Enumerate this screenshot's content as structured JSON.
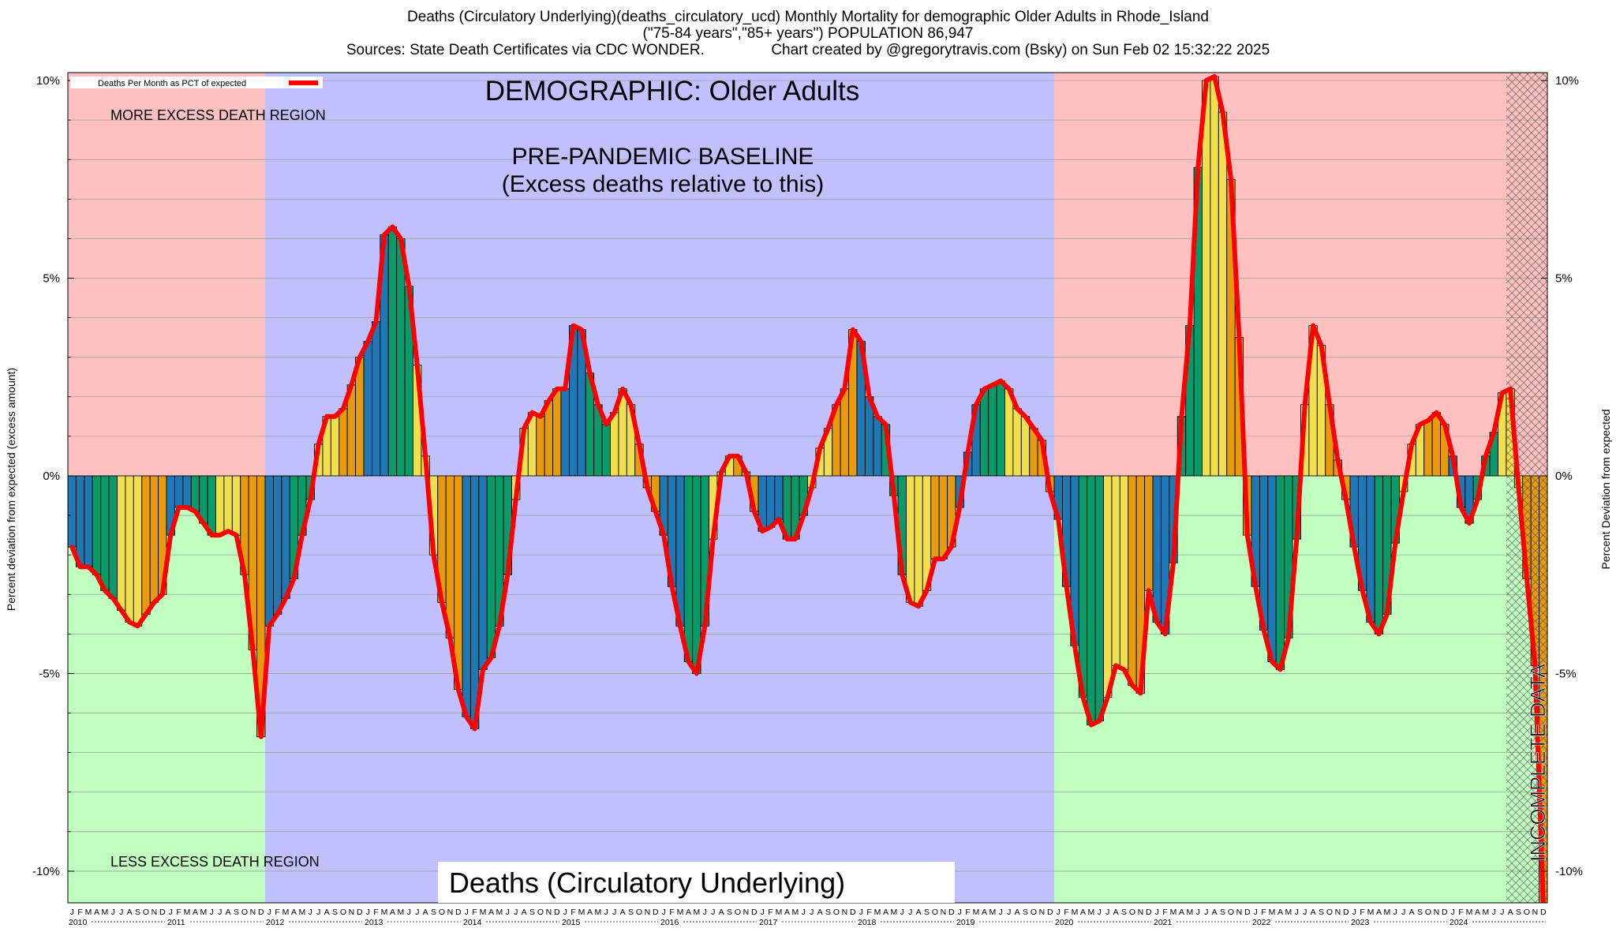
{
  "header": {
    "line1": "Deaths (Circulatory Underlying)(deaths_circulatory_ucd) Monthly Mortality for demographic Older Adults in Rhode_Island",
    "line2": "(\"75-84 years\",\"85+ years\") POPULATION 86,947",
    "line3": "Sources: State Death Certificates via CDC WONDER.                Chart created by @gregorytravis.com (Bsky) on Sun Feb 02 15:32:22 2025"
  },
  "labels": {
    "demographic": "DEMOGRAPHIC: Older Adults",
    "baseline_1": "PRE-PANDEMIC BASELINE",
    "baseline_2": "(Excess deaths relative to this)",
    "more_region": "MORE EXCESS DEATH REGION",
    "less_region": "LESS EXCESS DEATH REGION",
    "footer_title": "Deaths (Circulatory Underlying)",
    "incomplete": "INCOMPLETE DATA",
    "legend": "Deaths Per Month as PCT of expected"
  },
  "colors": {
    "excess_region": "#ffc0c0",
    "deficit_region": "#c0ffc0",
    "baseline_region": "#c0c0ff",
    "curve": "#ff0000",
    "bar_palette": [
      "#1f77b4",
      "#0a9a6a",
      "#f0e050",
      "#e69a10"
    ]
  },
  "chart_data": {
    "type": "bar",
    "title": "Deaths (Circulatory Underlying)(deaths_circulatory_ucd) Monthly Mortality for demographic Older Adults in Rhode_Island",
    "ylabel": "Percent deviation from expected (excess amount)",
    "ylabel_right": "Percent Deviation from expected",
    "ylim": [
      -10.8,
      10.2
    ],
    "yticks": [
      10,
      5,
      0,
      -5,
      -10
    ],
    "ytick_labels": [
      "10%",
      "5%",
      "0%",
      "-5%",
      "-10%"
    ],
    "month_letters": [
      "J",
      "F",
      "M",
      "A",
      "M",
      "J",
      "J",
      "A",
      "S",
      "O",
      "N",
      "D"
    ],
    "years": [
      "2010",
      "2011",
      "2012",
      "2013",
      "2014",
      "2015",
      "2016",
      "2017",
      "2018",
      "2019",
      "2020",
      "2021",
      "2022",
      "2023",
      "2024"
    ],
    "baseline_years": [
      "2012",
      "2019"
    ],
    "incomplete_from": "2024-08",
    "legend_position": "top-left",
    "series": [
      {
        "name": "Deaths Per Month as PCT of expected",
        "values": [
          -1.8,
          -2.3,
          -2.3,
          -2.5,
          -2.9,
          -3.1,
          -3.4,
          -3.7,
          -3.8,
          -3.5,
          -3.2,
          -3.0,
          -1.5,
          -0.8,
          -0.8,
          -0.9,
          -1.2,
          -1.5,
          -1.5,
          -1.4,
          -1.5,
          -2.5,
          -4.4,
          -6.6,
          -3.8,
          -3.5,
          -3.1,
          -2.6,
          -1.5,
          -0.6,
          0.8,
          1.5,
          1.5,
          1.7,
          2.3,
          3.0,
          3.4,
          3.9,
          6.1,
          6.3,
          6.0,
          4.8,
          2.8,
          0.5,
          -2.0,
          -3.2,
          -4.1,
          -5.4,
          -6.1,
          -6.4,
          -4.9,
          -4.6,
          -3.8,
          -2.5,
          -0.6,
          1.2,
          1.6,
          1.5,
          1.9,
          2.2,
          2.2,
          3.8,
          3.7,
          2.6,
          1.8,
          1.3,
          1.6,
          2.2,
          1.8,
          0.8,
          -0.3,
          -0.9,
          -1.5,
          -2.8,
          -3.8,
          -4.7,
          -5.0,
          -3.8,
          -1.6,
          0.1,
          0.5,
          0.5,
          0.1,
          -0.9,
          -1.4,
          -1.3,
          -1.1,
          -1.6,
          -1.6,
          -1.0,
          -0.3,
          0.7,
          1.2,
          1.8,
          2.2,
          3.7,
          3.4,
          2.0,
          1.5,
          1.3,
          -0.5,
          -2.5,
          -3.2,
          -3.3,
          -2.9,
          -2.1,
          -2.1,
          -1.8,
          -0.8,
          0.6,
          1.8,
          2.2,
          2.3,
          2.4,
          2.2,
          1.7,
          1.5,
          1.2,
          0.9,
          -0.4,
          -1.1,
          -2.8,
          -4.3,
          -5.6,
          -6.3,
          -6.2,
          -5.6,
          -4.8,
          -4.9,
          -5.3,
          -5.5,
          -2.9,
          -3.7,
          -4.0,
          -2.2,
          1.5,
          3.8,
          7.8,
          10.0,
          10.1,
          9.2,
          7.5,
          3.5,
          -1.5,
          -2.8,
          -3.9,
          -4.7,
          -4.9,
          -4.1,
          -1.6,
          1.8,
          3.8,
          3.3,
          1.8,
          0.4,
          -0.6,
          -1.8,
          -2.9,
          -3.7,
          -4.0,
          -3.5,
          -1.7,
          -0.4,
          0.8,
          1.3,
          1.4,
          1.6,
          1.3,
          0.5,
          -0.8,
          -1.2,
          -0.6,
          0.5,
          1.1,
          2.1,
          2.2,
          -0.3,
          -2.6,
          -4.8,
          -10.8
        ]
      }
    ]
  }
}
